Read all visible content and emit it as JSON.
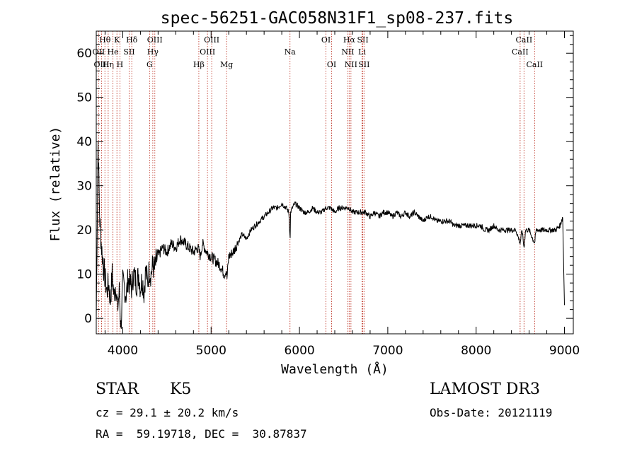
{
  "chart_data": {
    "type": "line",
    "title": "spec-56251-GAC058N31F1_sp08-237.fits",
    "xlabel": "Wavelength (Å)",
    "ylabel": "Flux (relative)",
    "xlim": [
      3700,
      9100
    ],
    "ylim": [
      -3.5,
      65
    ],
    "xticks": [
      4000,
      5000,
      6000,
      7000,
      8000,
      9000
    ],
    "yticks": [
      0,
      10,
      20,
      30,
      40,
      50,
      60
    ],
    "grid": false,
    "spectral_lines": [
      {
        "label": "Hθ",
        "wl": 3798,
        "row": 0
      },
      {
        "label": "OII",
        "wl": 3727,
        "row": 1
      },
      {
        "label": "OIII",
        "wl": 3760,
        "row": 2
      },
      {
        "label": "Hη",
        "wl": 3835,
        "row": 2
      },
      {
        "label": "He",
        "wl": 3889,
        "row": 1
      },
      {
        "label": "K",
        "wl": 3934,
        "row": 0
      },
      {
        "label": "H",
        "wl": 3968,
        "row": 2
      },
      {
        "label": "SII",
        "wl": 4072,
        "row": 1
      },
      {
        "label": "Hδ",
        "wl": 4102,
        "row": 0
      },
      {
        "label": "OIII",
        "wl": 4363,
        "row": 0
      },
      {
        "label": "Hγ",
        "wl": 4340,
        "row": 1
      },
      {
        "label": "G",
        "wl": 4304,
        "row": 2
      },
      {
        "label": "Hβ",
        "wl": 4861,
        "row": 2
      },
      {
        "label": "OIII",
        "wl": 4959,
        "row": 1
      },
      {
        "label": "OIII",
        "wl": 5007,
        "row": 0
      },
      {
        "label": "Mg",
        "wl": 5175,
        "row": 2
      },
      {
        "label": "Na",
        "wl": 5893,
        "row": 1
      },
      {
        "label": "OI",
        "wl": 6300,
        "row": 0
      },
      {
        "label": "OI",
        "wl": 6364,
        "row": 2
      },
      {
        "label": "Hα",
        "wl": 6563,
        "row": 0
      },
      {
        "label": "NII",
        "wl": 6548,
        "row": 1
      },
      {
        "label": "NII",
        "wl": 6583,
        "row": 2
      },
      {
        "label": "SII",
        "wl": 6717,
        "row": 0
      },
      {
        "label": "Li",
        "wl": 6708,
        "row": 1
      },
      {
        "label": "SII",
        "wl": 6731,
        "row": 2
      },
      {
        "label": "CaII",
        "wl": 8542,
        "row": 0
      },
      {
        "label": "CaII",
        "wl": 8498,
        "row": 1
      },
      {
        "label": "CaII",
        "wl": 8662,
        "row": 2
      }
    ],
    "series": [
      {
        "name": "flux",
        "x": [
          3700,
          3720,
          3740,
          3760,
          3780,
          3800,
          3820,
          3840,
          3860,
          3880,
          3900,
          3920,
          3940,
          3960,
          3980,
          4000,
          4020,
          4040,
          4060,
          4080,
          4100,
          4120,
          4140,
          4160,
          4180,
          4200,
          4220,
          4240,
          4260,
          4280,
          4300,
          4320,
          4340,
          4360,
          4380,
          4400,
          4450,
          4500,
          4550,
          4600,
          4650,
          4700,
          4750,
          4800,
          4850,
          4880,
          4900,
          4950,
          5000,
          5050,
          5100,
          5150,
          5170,
          5180,
          5200,
          5250,
          5300,
          5350,
          5400,
          5450,
          5500,
          5550,
          5600,
          5650,
          5700,
          5750,
          5800,
          5850,
          5880,
          5890,
          5895,
          5900,
          5920,
          5950,
          6000,
          6050,
          6100,
          6150,
          6200,
          6250,
          6300,
          6350,
          6400,
          6450,
          6500,
          6550,
          6563,
          6600,
          6650,
          6700,
          6750,
          6800,
          6850,
          6900,
          6950,
          7000,
          7050,
          7100,
          7150,
          7200,
          7250,
          7300,
          7350,
          7400,
          7450,
          7500,
          7550,
          7600,
          7650,
          7700,
          7750,
          7800,
          7850,
          7900,
          7950,
          8000,
          8050,
          8100,
          8150,
          8200,
          8250,
          8300,
          8350,
          8400,
          8450,
          8498,
          8520,
          8542,
          8560,
          8600,
          8662,
          8680,
          8700,
          8750,
          8800,
          8850,
          8900,
          8950,
          8980,
          9000
        ],
        "y": [
          0,
          40,
          22,
          16,
          12,
          9,
          6,
          8,
          4,
          10,
          5,
          8,
          2,
          6,
          -2,
          8,
          7,
          5,
          9,
          8,
          7,
          10,
          9,
          8,
          10,
          7,
          9,
          6,
          11,
          8,
          11,
          10,
          12,
          11,
          13,
          14,
          16,
          15,
          17,
          16,
          18,
          17,
          16,
          15,
          16,
          14,
          17,
          15,
          14,
          13,
          12,
          10,
          11,
          9,
          14,
          15,
          17,
          19,
          18,
          20,
          21,
          22,
          23,
          24,
          25,
          25,
          26,
          25,
          24,
          20,
          18,
          24,
          25,
          26,
          25,
          24,
          24,
          25,
          24,
          24,
          25,
          25,
          24,
          25,
          25,
          25,
          25,
          24,
          24,
          24,
          24,
          23,
          24,
          23,
          24,
          24,
          23,
          24,
          23,
          24,
          23,
          24,
          23,
          22,
          23,
          23,
          22,
          22,
          22,
          22,
          21,
          21,
          21,
          21,
          21,
          21,
          21,
          20,
          20,
          21,
          20,
          20,
          20,
          20,
          20,
          17,
          20,
          16,
          20,
          20,
          17,
          20,
          20,
          20,
          20,
          20,
          20,
          21,
          23,
          3
        ]
      }
    ]
  },
  "info": {
    "class": "STAR",
    "subclass": "K5",
    "survey": "LAMOST DR3",
    "cz": "cz = 29.1 ± 20.2 km/s",
    "obsdate": "Obs-Date: 20121119",
    "radec": "RA =  59.19718, DEC =  30.87837"
  }
}
